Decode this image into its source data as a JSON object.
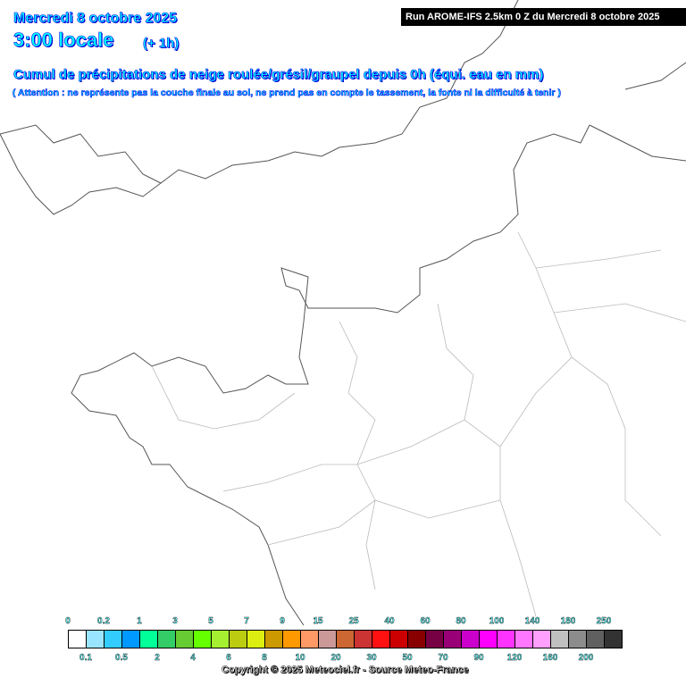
{
  "header": {
    "date": "Mercredi 8 octobre 2025",
    "time": "3:00 locale",
    "offset": "(+ 1h)",
    "title": "Cumul de précipitations de neige roulée/grésil/graupel depuis 0h (équi. eau en mm)",
    "warning": "( Attention : ne représente pas la couche finale au sol, ne prend pas en compte le tassement, la fonte ni la difficulté à tenir )",
    "run": "Run AROME-IFS 2.5km 0 Z du Mercredi 8 octobre 2025"
  },
  "legend": {
    "top_labels": [
      "0",
      "0.2",
      "1",
      "3",
      "5",
      "7",
      "9",
      "15",
      "25",
      "40",
      "60",
      "80",
      "100",
      "140",
      "180",
      "250"
    ],
    "bottom_labels": [
      "0.1",
      "0.5",
      "2",
      "4",
      "6",
      "8",
      "10",
      "20",
      "30",
      "50",
      "70",
      "90",
      "120",
      "160",
      "200"
    ],
    "colors": [
      "#ffffff",
      "#99e5ff",
      "#33ccff",
      "#0099ff",
      "#00ff99",
      "#33cc66",
      "#66cc33",
      "#66ff00",
      "#a6f032",
      "#bbcc11",
      "#ddee11",
      "#cc9900",
      "#ff9900",
      "#ff9966",
      "#cc9999",
      "#cc6633",
      "#cc3333",
      "#ff1111",
      "#cc0000",
      "#880000",
      "#770044",
      "#990077",
      "#cc00cc",
      "#ff00ff",
      "#ff33ff",
      "#ff77ff",
      "#ffa0ff",
      "#c0c0c0",
      "#8c8c8c",
      "#606060",
      "#333333"
    ]
  },
  "copyright": "Copyright © 2025 Meteociel.fr - Source Meteo-France"
}
